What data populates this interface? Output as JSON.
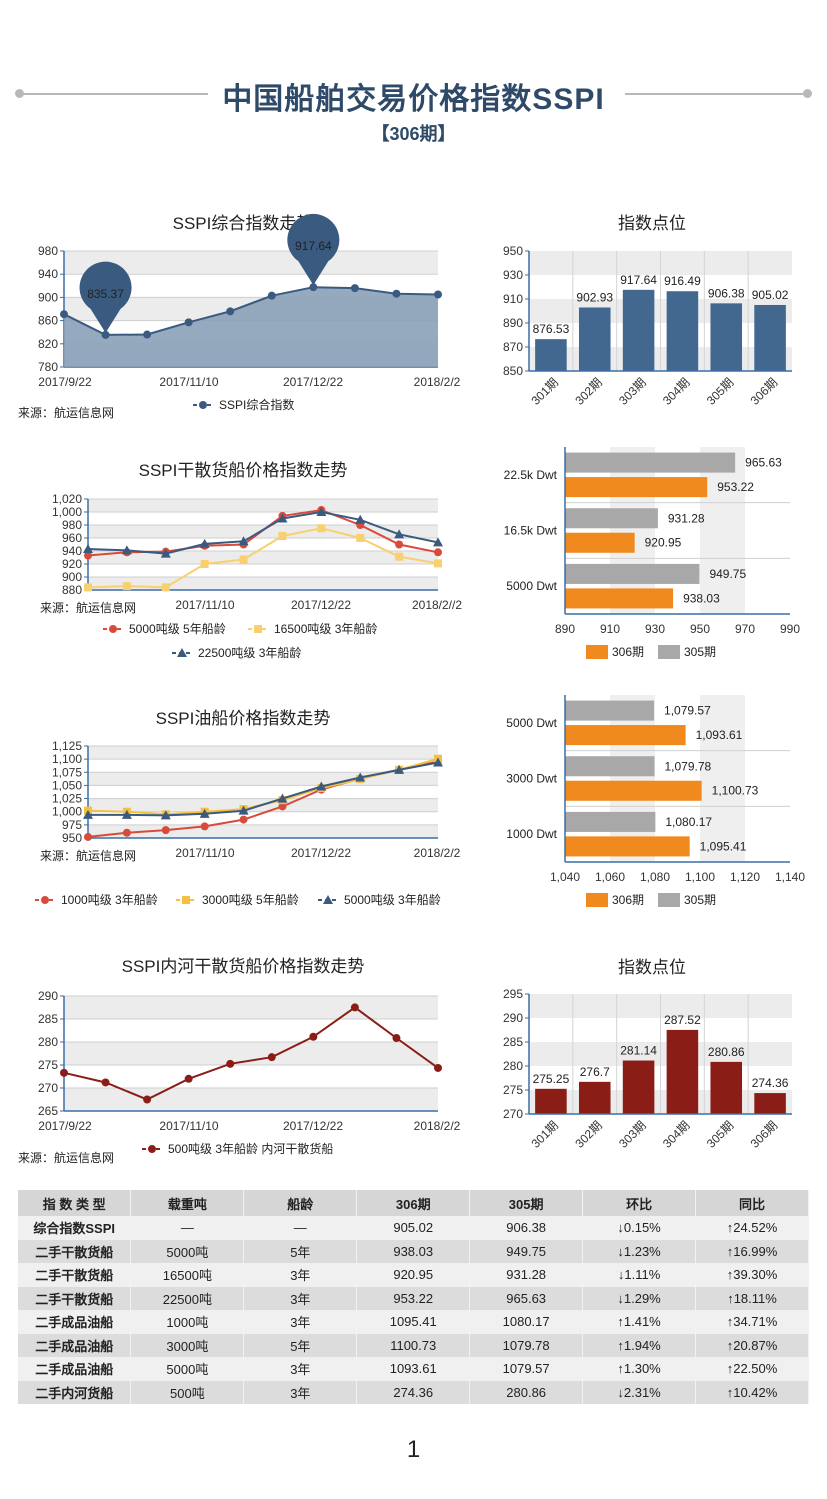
{
  "header": {
    "title": "中国船舶交易价格指数SSPI",
    "subtitle": "【306期】"
  },
  "page_number": "1",
  "colors": {
    "blue": "#426890",
    "orange": "#f08a1e",
    "gray": "#a8a8a8",
    "red": "#d84a3a",
    "yellow": "#f8d070",
    "navy": "#3a5a80",
    "darkred": "#8a1e17"
  },
  "chart_data": [
    {
      "id": "c1",
      "type": "area",
      "title": "SSPI综合指数走势",
      "x_ticks": [
        "2017/9/22",
        "2017/11/10",
        "2017/12/22",
        "2018/2/2"
      ],
      "y_ticks": [
        "980",
        "940",
        "900",
        "860",
        "820",
        "780"
      ],
      "ylim": [
        780,
        980
      ],
      "series": [
        {
          "name": "SSPI综合指数",
          "values": [
            871,
            835.37,
            836,
            857,
            876,
            903,
            917.64,
            916,
            906.38,
            905.02
          ]
        }
      ],
      "callouts": [
        "835.37",
        "917.64"
      ],
      "source": "来源：航运信息网"
    },
    {
      "id": "c2",
      "type": "bar",
      "title": "指数点位",
      "categories": [
        "301期",
        "302期",
        "303期",
        "304期",
        "305期",
        "306期"
      ],
      "values": [
        876.53,
        902.93,
        917.64,
        916.49,
        906.38,
        905.02
      ],
      "labels": [
        "876.53",
        "902.93",
        "917.64",
        "916.49",
        "906.38",
        "905.02"
      ],
      "y_ticks": [
        "950",
        "930",
        "910",
        "890",
        "870",
        "850"
      ],
      "ylim": [
        850,
        950
      ]
    },
    {
      "id": "c3",
      "type": "line",
      "title": "SSPI干散货船价格指数走势",
      "x_ticks": [
        "2017/11/10",
        "2017/12/22",
        "2018/2//2"
      ],
      "y_ticks": [
        "1,020",
        "1,000",
        "980",
        "960",
        "940",
        "920",
        "900",
        "880"
      ],
      "ylim": [
        880,
        1020
      ],
      "source": "来源：航运信息网",
      "series": [
        {
          "name": "5000吨级 5年船龄",
          "values": [
            933,
            938,
            939,
            948,
            950,
            994,
            1003,
            980,
            950,
            938.03
          ]
        },
        {
          "name": "16500吨级 3年船龄",
          "values": [
            884,
            886,
            884,
            920,
            927,
            963,
            975,
            960,
            931.28,
            920.95
          ]
        },
        {
          "name": "22500吨级 3年船龄",
          "values": [
            943,
            941,
            936,
            951,
            955,
            990,
            1000,
            988,
            965.63,
            953.22
          ]
        }
      ]
    },
    {
      "id": "c4",
      "type": "bar",
      "title": "",
      "categories": [
        "22.5k Dwt",
        "16.5k Dwt",
        "5000 Dwt"
      ],
      "series": [
        {
          "name": "306期",
          "values": [
            953.22,
            920.95,
            938.03
          ],
          "labels": [
            "953.22",
            "920.95",
            "938.03"
          ]
        },
        {
          "name": "305期",
          "values": [
            965.63,
            931.28,
            949.75
          ],
          "labels": [
            "965.63",
            "931.28",
            "949.75"
          ]
        }
      ],
      "x_ticks": [
        "890",
        "910",
        "930",
        "950",
        "970",
        "990"
      ],
      "xlim": [
        890,
        990
      ]
    },
    {
      "id": "c5",
      "type": "line",
      "title": "SSPI油船价格指数走势",
      "x_ticks": [
        "2017/11/10",
        "2017/12/22",
        "2018/2/2"
      ],
      "y_ticks": [
        "1,125",
        "1,100",
        "1,075",
        "1,050",
        "1,025",
        "1,000",
        "975",
        "950"
      ],
      "ylim": [
        950,
        1125
      ],
      "source": "来源：航运信息网",
      "series": [
        {
          "name": "1000吨级 3年船龄",
          "values": [
            952,
            960,
            965,
            972,
            985,
            1010,
            1042,
            1063,
            1080.17,
            1095.41
          ]
        },
        {
          "name": "3000吨级 5年船龄",
          "values": [
            1002,
            1000,
            995,
            1000,
            1005,
            1022,
            1045,
            1062,
            1079.78,
            1100.73
          ]
        },
        {
          "name": "5000吨级 3年船龄",
          "values": [
            994,
            994,
            993,
            996,
            1002,
            1025,
            1048,
            1065,
            1079.57,
            1093.61
          ]
        }
      ]
    },
    {
      "id": "c6",
      "type": "bar",
      "title": "",
      "categories": [
        "5000 Dwt",
        "3000 Dwt",
        "1000 Dwt"
      ],
      "series": [
        {
          "name": "306期",
          "values": [
            1093.61,
            1100.73,
            1095.41
          ],
          "labels": [
            "1,093.61",
            "1,100.73",
            "1,095.41"
          ]
        },
        {
          "name": "305期",
          "values": [
            1079.57,
            1079.78,
            1080.17
          ],
          "labels": [
            "1,079.57",
            "1,079.78",
            "1,080.17"
          ]
        }
      ],
      "x_ticks": [
        "1,040",
        "1,060",
        "1,080",
        "1,100",
        "1,120",
        "1,140"
      ],
      "xlim": [
        1040,
        1140
      ]
    },
    {
      "id": "c7",
      "type": "line",
      "title": "SSPI内河干散货船价格指数走势",
      "x_ticks": [
        "2017/9/22",
        "2017/11/10",
        "2017/12/22",
        "2018/2/2"
      ],
      "y_ticks": [
        "290",
        "285",
        "280",
        "275",
        "270",
        "265"
      ],
      "ylim": [
        265,
        290
      ],
      "source": "来源：航运信息网",
      "series": [
        {
          "name": "500吨级 3年船龄 内河干散货船",
          "values": [
            273.3,
            271.2,
            267.5,
            272,
            275.25,
            276.7,
            281.14,
            287.52,
            280.86,
            274.36
          ]
        }
      ]
    },
    {
      "id": "c8",
      "type": "bar",
      "title": "指数点位",
      "categories": [
        "301期",
        "302期",
        "303期",
        "304期",
        "305期",
        "306期"
      ],
      "values": [
        275.25,
        276.7,
        281.14,
        287.52,
        280.86,
        274.36
      ],
      "labels": [
        "275.25",
        "276.7",
        "281.14",
        "287.52",
        "280.86",
        "274.36"
      ],
      "y_ticks": [
        "295",
        "290",
        "285",
        "280",
        "275",
        "270"
      ],
      "ylim": [
        270,
        295
      ]
    },
    {
      "id": "summary",
      "type": "table",
      "columns": [
        "指 数 类 型",
        "载重吨",
        "船龄",
        "306期",
        "305期",
        "环比",
        "同比"
      ],
      "rows": [
        [
          "综合指数SSPI",
          "—",
          "—",
          "905.02",
          "906.38",
          "↓0.15%",
          "↑24.52%"
        ],
        [
          "二手干散货船",
          "5000吨",
          "5年",
          "938.03",
          "949.75",
          "↓1.23%",
          "↑16.99%"
        ],
        [
          "二手干散货船",
          "16500吨",
          "3年",
          "920.95",
          "931.28",
          "↓1.11%",
          "↑39.30%"
        ],
        [
          "二手干散货船",
          "22500吨",
          "3年",
          "953.22",
          "965.63",
          "↓1.29%",
          "↑18.11%"
        ],
        [
          "二手成品油船",
          "1000吨",
          "3年",
          "1095.41",
          "1080.17",
          "↑1.41%",
          "↑34.71%"
        ],
        [
          "二手成品油船",
          "3000吨",
          "5年",
          "1100.73",
          "1079.78",
          "↑1.94%",
          "↑20.87%"
        ],
        [
          "二手成品油船",
          "5000吨",
          "3年",
          "1093.61",
          "1079.57",
          "↑1.30%",
          "↑22.50%"
        ],
        [
          "二手内河货船",
          "500吨",
          "3年",
          "274.36",
          "280.86",
          "↓2.31%",
          "↑10.42%"
        ]
      ]
    }
  ]
}
